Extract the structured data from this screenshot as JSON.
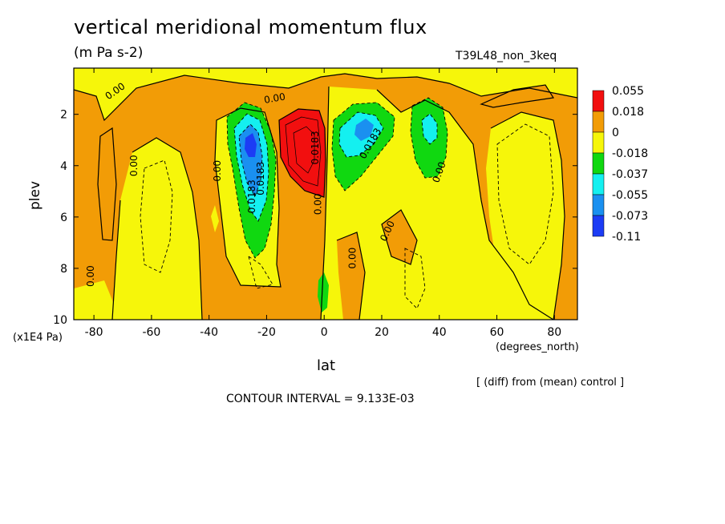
{
  "figure": {
    "title": "vertical meridional momentum flux",
    "subtitle": "(m Pa s-2)",
    "experiment": "T39L48_non_3keq",
    "y_unit": "(x1E4 Pa)",
    "x_unit": "(degrees_north)",
    "note": "[ (diff) from (mean) control ]",
    "contour_interval": "CONTOUR INTERVAL = 9.133E-03"
  },
  "colors": {
    "red": "#f20f0f",
    "orange": "#f29c06",
    "yellow": "#f6f60a",
    "green": "#10d810",
    "cyan": "#14f0f0",
    "blue": "#1a90f0",
    "darkblue": "#1c3cf5"
  },
  "chart_data": {
    "type": "heatmap",
    "title": "vertical meridional momentum flux",
    "subtitle": "(m Pa s-2)",
    "xlabel": "lat",
    "ylabel": "plev",
    "x_unit": "(degrees_north)",
    "y_unit": "(x1E4 Pa)",
    "xlim": [
      -87,
      88
    ],
    "ylim": [
      10,
      0.2
    ],
    "y_inverted": true,
    "x_ticks": [
      -80,
      -60,
      -40,
      -20,
      0,
      20,
      40,
      60,
      80
    ],
    "y_ticks": [
      2,
      4,
      6,
      8,
      10
    ],
    "colorbar": {
      "levels": [
        "0.055",
        "0.018",
        "0",
        "-0.018",
        "-0.037",
        "-0.055",
        "-0.073",
        "-0.11"
      ],
      "colors": [
        "#f20f0f",
        "#f29c06",
        "#f6f60a",
        "#10d810",
        "#14f0f0",
        "#1a90f0",
        "#1c3cf5"
      ]
    },
    "contour_labels": [
      {
        "text": "0.00",
        "x": -72,
        "y": 1.2,
        "angle": -35
      },
      {
        "text": "0.00",
        "x": -17,
        "y": 1.5,
        "angle": -10
      },
      {
        "text": "0.00",
        "x": -65,
        "y": 4.0,
        "angle": -90
      },
      {
        "text": "0.00",
        "x": -36,
        "y": 4.2,
        "angle": -90
      },
      {
        "text": "0.0183",
        "x": -21,
        "y": 4.5,
        "angle": -90
      },
      {
        "text": "0.0183",
        "x": -24,
        "y": 5.2,
        "angle": -90
      },
      {
        "text": "0.0183",
        "x": -2,
        "y": 3.3,
        "angle": -90
      },
      {
        "text": "0.00",
        "x": -1,
        "y": 5.5,
        "angle": -90
      },
      {
        "text": "0.0183",
        "x": 17,
        "y": 3.2,
        "angle": -60
      },
      {
        "text": "0.00",
        "x": 41,
        "y": 4.3,
        "angle": -70
      },
      {
        "text": "0.00",
        "x": 23,
        "y": 6.6,
        "angle": -65
      },
      {
        "text": "0.00",
        "x": 11,
        "y": 7.6,
        "angle": -90
      },
      {
        "text": "0.00",
        "x": -80,
        "y": 8.3,
        "angle": -90
      }
    ]
  }
}
